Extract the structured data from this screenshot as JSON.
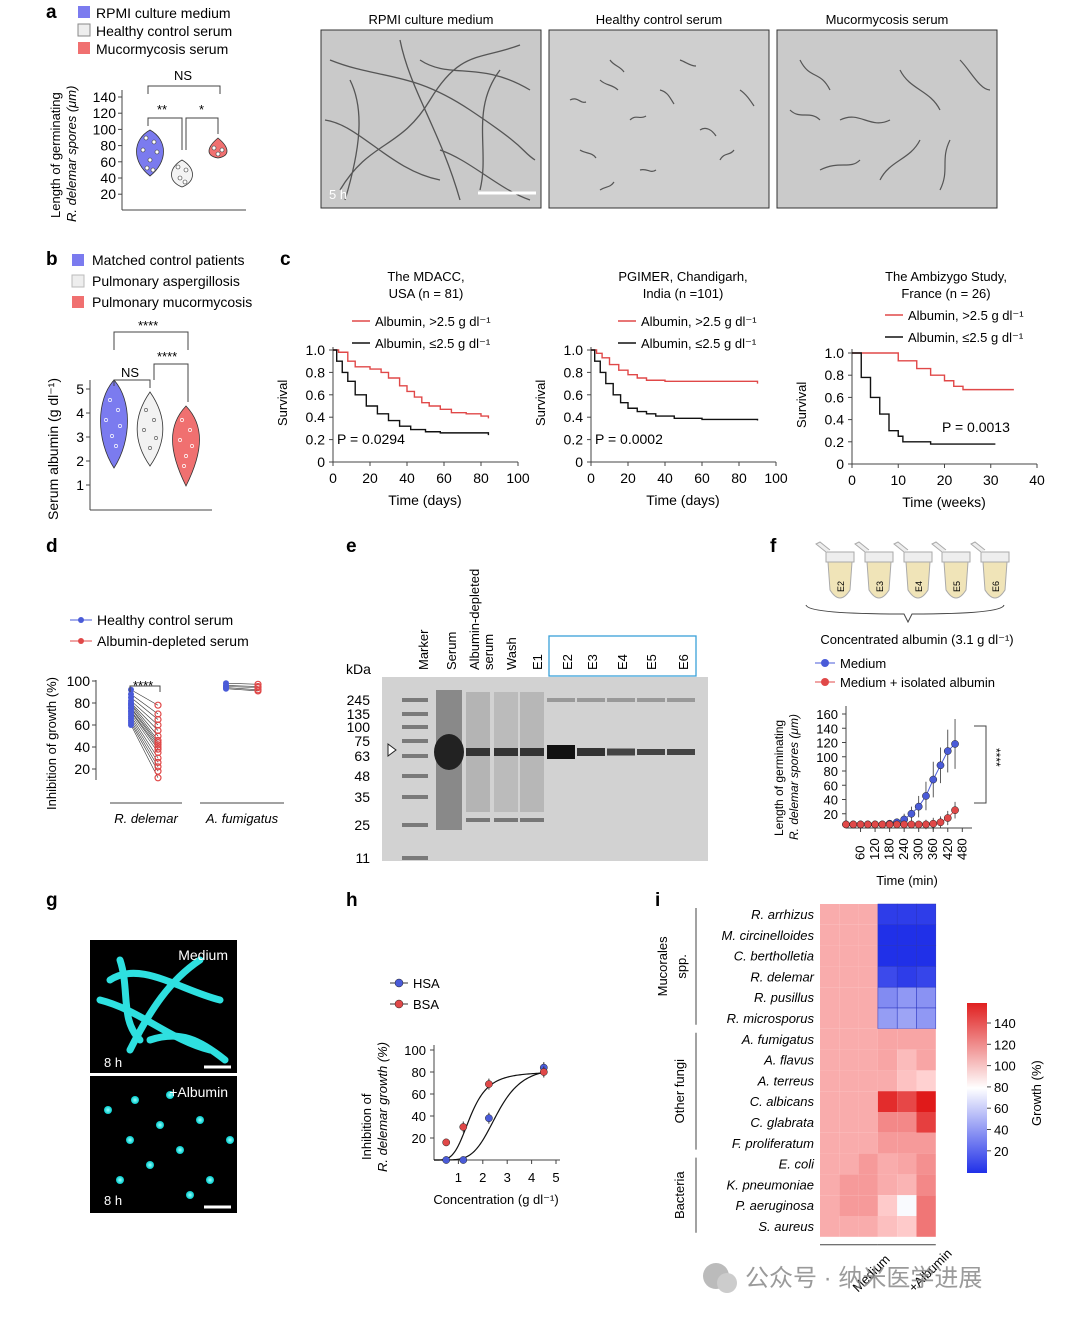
{
  "panels": [
    "a",
    "b",
    "c",
    "d",
    "e",
    "f",
    "g",
    "h",
    "i"
  ],
  "a": {
    "legend": [
      "RPMI culture medium",
      "Healthy control serum",
      "Mucormycosis serum"
    ],
    "ylabel1": "Length of germinating",
    "ylabel2": "R. delemar spores (μm)",
    "yticks": [
      "140",
      "120",
      "100",
      "80",
      "60",
      "40",
      "20"
    ],
    "sig_top": "NS",
    "sig_left": "**",
    "sig_right": "*",
    "image_titles": [
      "RPMI culture medium",
      "Healthy control serum",
      "Mucormycosis serum"
    ],
    "time_stamp": "5 h"
  },
  "b": {
    "legend": [
      "Matched control patients",
      "Pulmonary aspergillosis",
      "Pulmonary mucormycosis"
    ],
    "ylabel": "Serum albumin (g dl⁻¹)",
    "yticks": [
      "5",
      "4",
      "3",
      "2",
      "1"
    ],
    "sig_top": "****",
    "sig_left": "NS",
    "sig_right": "****"
  },
  "c": {
    "studies": [
      {
        "title1": "The MDACC,",
        "title2": "USA (n = 81)",
        "p": "P = 0.0294",
        "xlabel": "Time (days)",
        "xticks": [
          "0",
          "20",
          "40",
          "60",
          "80",
          "100"
        ]
      },
      {
        "title1": "PGIMER, Chandigarh,",
        "title2": "India (n =101)",
        "p": "P = 0.0002",
        "xlabel": "Time (days)",
        "xticks": [
          "0",
          "20",
          "40",
          "60",
          "80",
          "100"
        ]
      },
      {
        "title1": "The Ambizygo Study,",
        "title2": "France (n = 26)",
        "p": "P = 0.0013",
        "xlabel": "Time (weeks)",
        "xticks": [
          "0",
          "10",
          "20",
          "30",
          "40"
        ]
      }
    ],
    "legend_high": "Albumin, >2.5 g dl⁻¹",
    "legend_low": "Albumin, ≤2.5 g dl⁻¹",
    "ylabel": "Survival",
    "yticks": [
      "1.0",
      "0.8",
      "0.6",
      "0.4",
      "0.2",
      "0"
    ]
  },
  "d": {
    "legend": [
      "Healthy control serum",
      "Albumin-depleted serum"
    ],
    "ylabel": "Inhibition of growth (%)",
    "yticks": [
      "100",
      "80",
      "60",
      "40",
      "20"
    ],
    "sig": "****",
    "groups": [
      "R. delemar",
      "A. fumigatus"
    ]
  },
  "e": {
    "kda_label": "kDa",
    "markers": [
      "245",
      "135",
      "100",
      "75",
      "63",
      "48",
      "35",
      "25",
      "11"
    ],
    "lanes": [
      "Marker",
      "Serum",
      "Albumin-depleted serum",
      "Wash",
      "E1",
      "E2",
      "E3",
      "E4",
      "E5",
      "E6"
    ]
  },
  "f": {
    "tubes": [
      "E2",
      "E3",
      "E4",
      "E5",
      "E6"
    ],
    "conc_label": "Concentrated albumin (3.1 g dl⁻¹)",
    "legend": [
      "Medium",
      "Medium + isolated albumin"
    ],
    "ylabel1": "Length of germinating",
    "ylabel2": "R. delemar spores (μm)",
    "yticks": [
      "160",
      "140",
      "120",
      "100",
      "80",
      "60",
      "40",
      "20"
    ],
    "xticks": [
      "60",
      "120",
      "180",
      "240",
      "300",
      "360",
      "420",
      "480"
    ],
    "xlabel": "Time (min)",
    "sig": "****"
  },
  "g": {
    "medium_label": "Medium",
    "albumin_label": "+Albumin",
    "time_top": "8 h",
    "time_bottom": "8 h"
  },
  "chart_data": [
    {
      "panel": "h",
      "type": "line",
      "title": "",
      "xlabel": "Concentration (g dl⁻¹)",
      "ylabel": "Inhibition of R. delemar growth (%)",
      "xlim": [
        0,
        5
      ],
      "ylim": [
        0,
        100
      ],
      "xticks": [
        "1",
        "2",
        "3",
        "4",
        "5"
      ],
      "yticks": [
        "100",
        "80",
        "60",
        "40",
        "20"
      ],
      "series": [
        {
          "name": "HSA",
          "color": "#4a5bd8",
          "x": [
            0.5,
            1.2,
            2.25,
            4.5
          ],
          "values": [
            0,
            0,
            38,
            84
          ]
        },
        {
          "name": "BSA",
          "color": "#e04848",
          "x": [
            0.5,
            1.2,
            2.25,
            4.5
          ],
          "values": [
            16,
            30,
            69,
            80
          ]
        }
      ]
    },
    {
      "panel": "i",
      "type": "heatmap",
      "ylabel": "Growth (%)",
      "colorbar_ticks": [
        "140",
        "120",
        "100",
        "80",
        "60",
        "40",
        "20"
      ],
      "groups": [
        "Mucorales spp.",
        "Other fungi",
        "Bacteria"
      ],
      "rows": [
        "R. arrhizus",
        "M. circinelloides",
        "C. bertholletia",
        "R. delemar",
        "R. pusillus",
        "R. microsporus",
        "A. fumigatus",
        "A. flavus",
        "A. terreus",
        "C. albicans",
        "C. glabrata",
        "F. proliferatum",
        "E. coli",
        "K. pneumoniae",
        "P. aeruginosa",
        "S. aureus"
      ],
      "columns": [
        "Medium",
        "Medium",
        "Medium",
        "+Albumin",
        "+Albumin",
        "+Albumin"
      ],
      "column_groups": [
        "Medium",
        "+Albumin"
      ],
      "values": [
        [
          110,
          110,
          110,
          25,
          25,
          25
        ],
        [
          110,
          110,
          110,
          10,
          10,
          10
        ],
        [
          110,
          110,
          110,
          15,
          15,
          15
        ],
        [
          110,
          110,
          110,
          30,
          25,
          28
        ],
        [
          110,
          110,
          110,
          55,
          60,
          58
        ],
        [
          110,
          110,
          110,
          62,
          65,
          60
        ],
        [
          110,
          110,
          110,
          112,
          112,
          112
        ],
        [
          110,
          110,
          110,
          112,
          106,
          112
        ],
        [
          110,
          110,
          110,
          110,
          104,
          100
        ],
        [
          110,
          110,
          110,
          145,
          138,
          150
        ],
        [
          110,
          110,
          110,
          120,
          120,
          140
        ],
        [
          110,
          110,
          110,
          115,
          115,
          115
        ],
        [
          110,
          110,
          115,
          110,
          112,
          118
        ],
        [
          110,
          115,
          115,
          110,
          108,
          120
        ],
        [
          110,
          115,
          115,
          102,
          98,
          125
        ],
        [
          110,
          110,
          110,
          105,
          102,
          125
        ]
      ]
    }
  ],
  "watermark": "公众号 · 纳米医学进展"
}
